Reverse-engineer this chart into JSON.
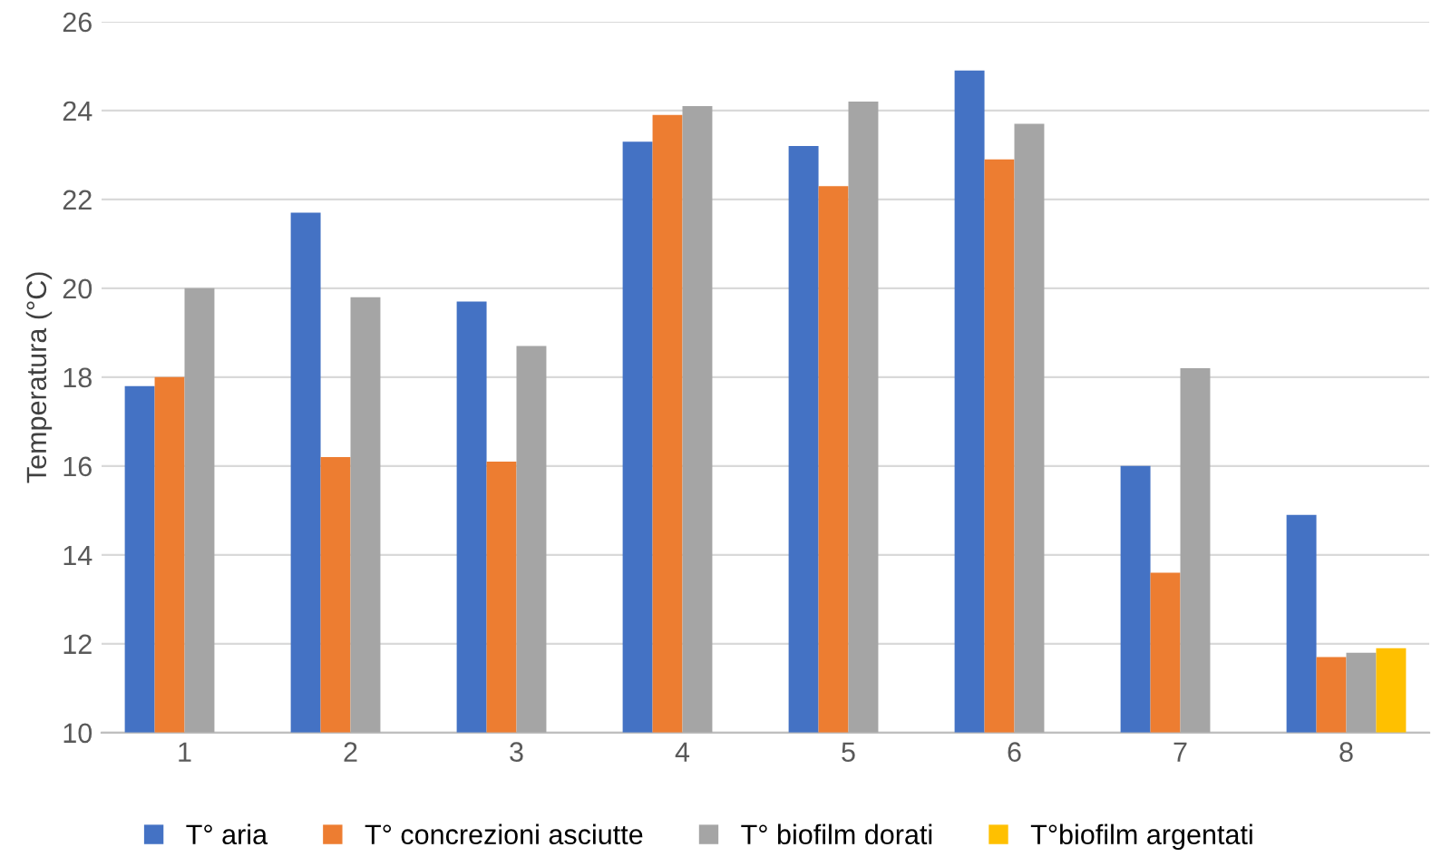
{
  "chart_data": {
    "type": "bar",
    "ylabel": "Temperatura (°C)",
    "categories": [
      "1",
      "2",
      "3",
      "4",
      "5",
      "6",
      "7",
      "8"
    ],
    "series": [
      {
        "name": "T° aria",
        "color": "#4472c4",
        "values": [
          17.8,
          21.7,
          19.7,
          23.3,
          23.2,
          24.9,
          16.0,
          14.9
        ]
      },
      {
        "name": "T° concrezioni asciutte",
        "color": "#ed7d31",
        "values": [
          18.0,
          16.2,
          16.1,
          23.9,
          22.3,
          22.9,
          13.6,
          11.7
        ]
      },
      {
        "name": "T° biofilm dorati",
        "color": "#a5a5a5",
        "values": [
          20.0,
          19.8,
          18.7,
          24.1,
          24.2,
          23.7,
          18.2,
          11.8
        ]
      },
      {
        "name": "T°biofilm argentati",
        "color": "#ffc000",
        "values": [
          null,
          null,
          null,
          null,
          null,
          null,
          null,
          11.9
        ]
      }
    ],
    "ylim": [
      10,
      26
    ],
    "yticks": [
      10,
      12,
      14,
      16,
      18,
      20,
      22,
      24,
      26
    ],
    "grid": "y",
    "legend": "bottom"
  }
}
